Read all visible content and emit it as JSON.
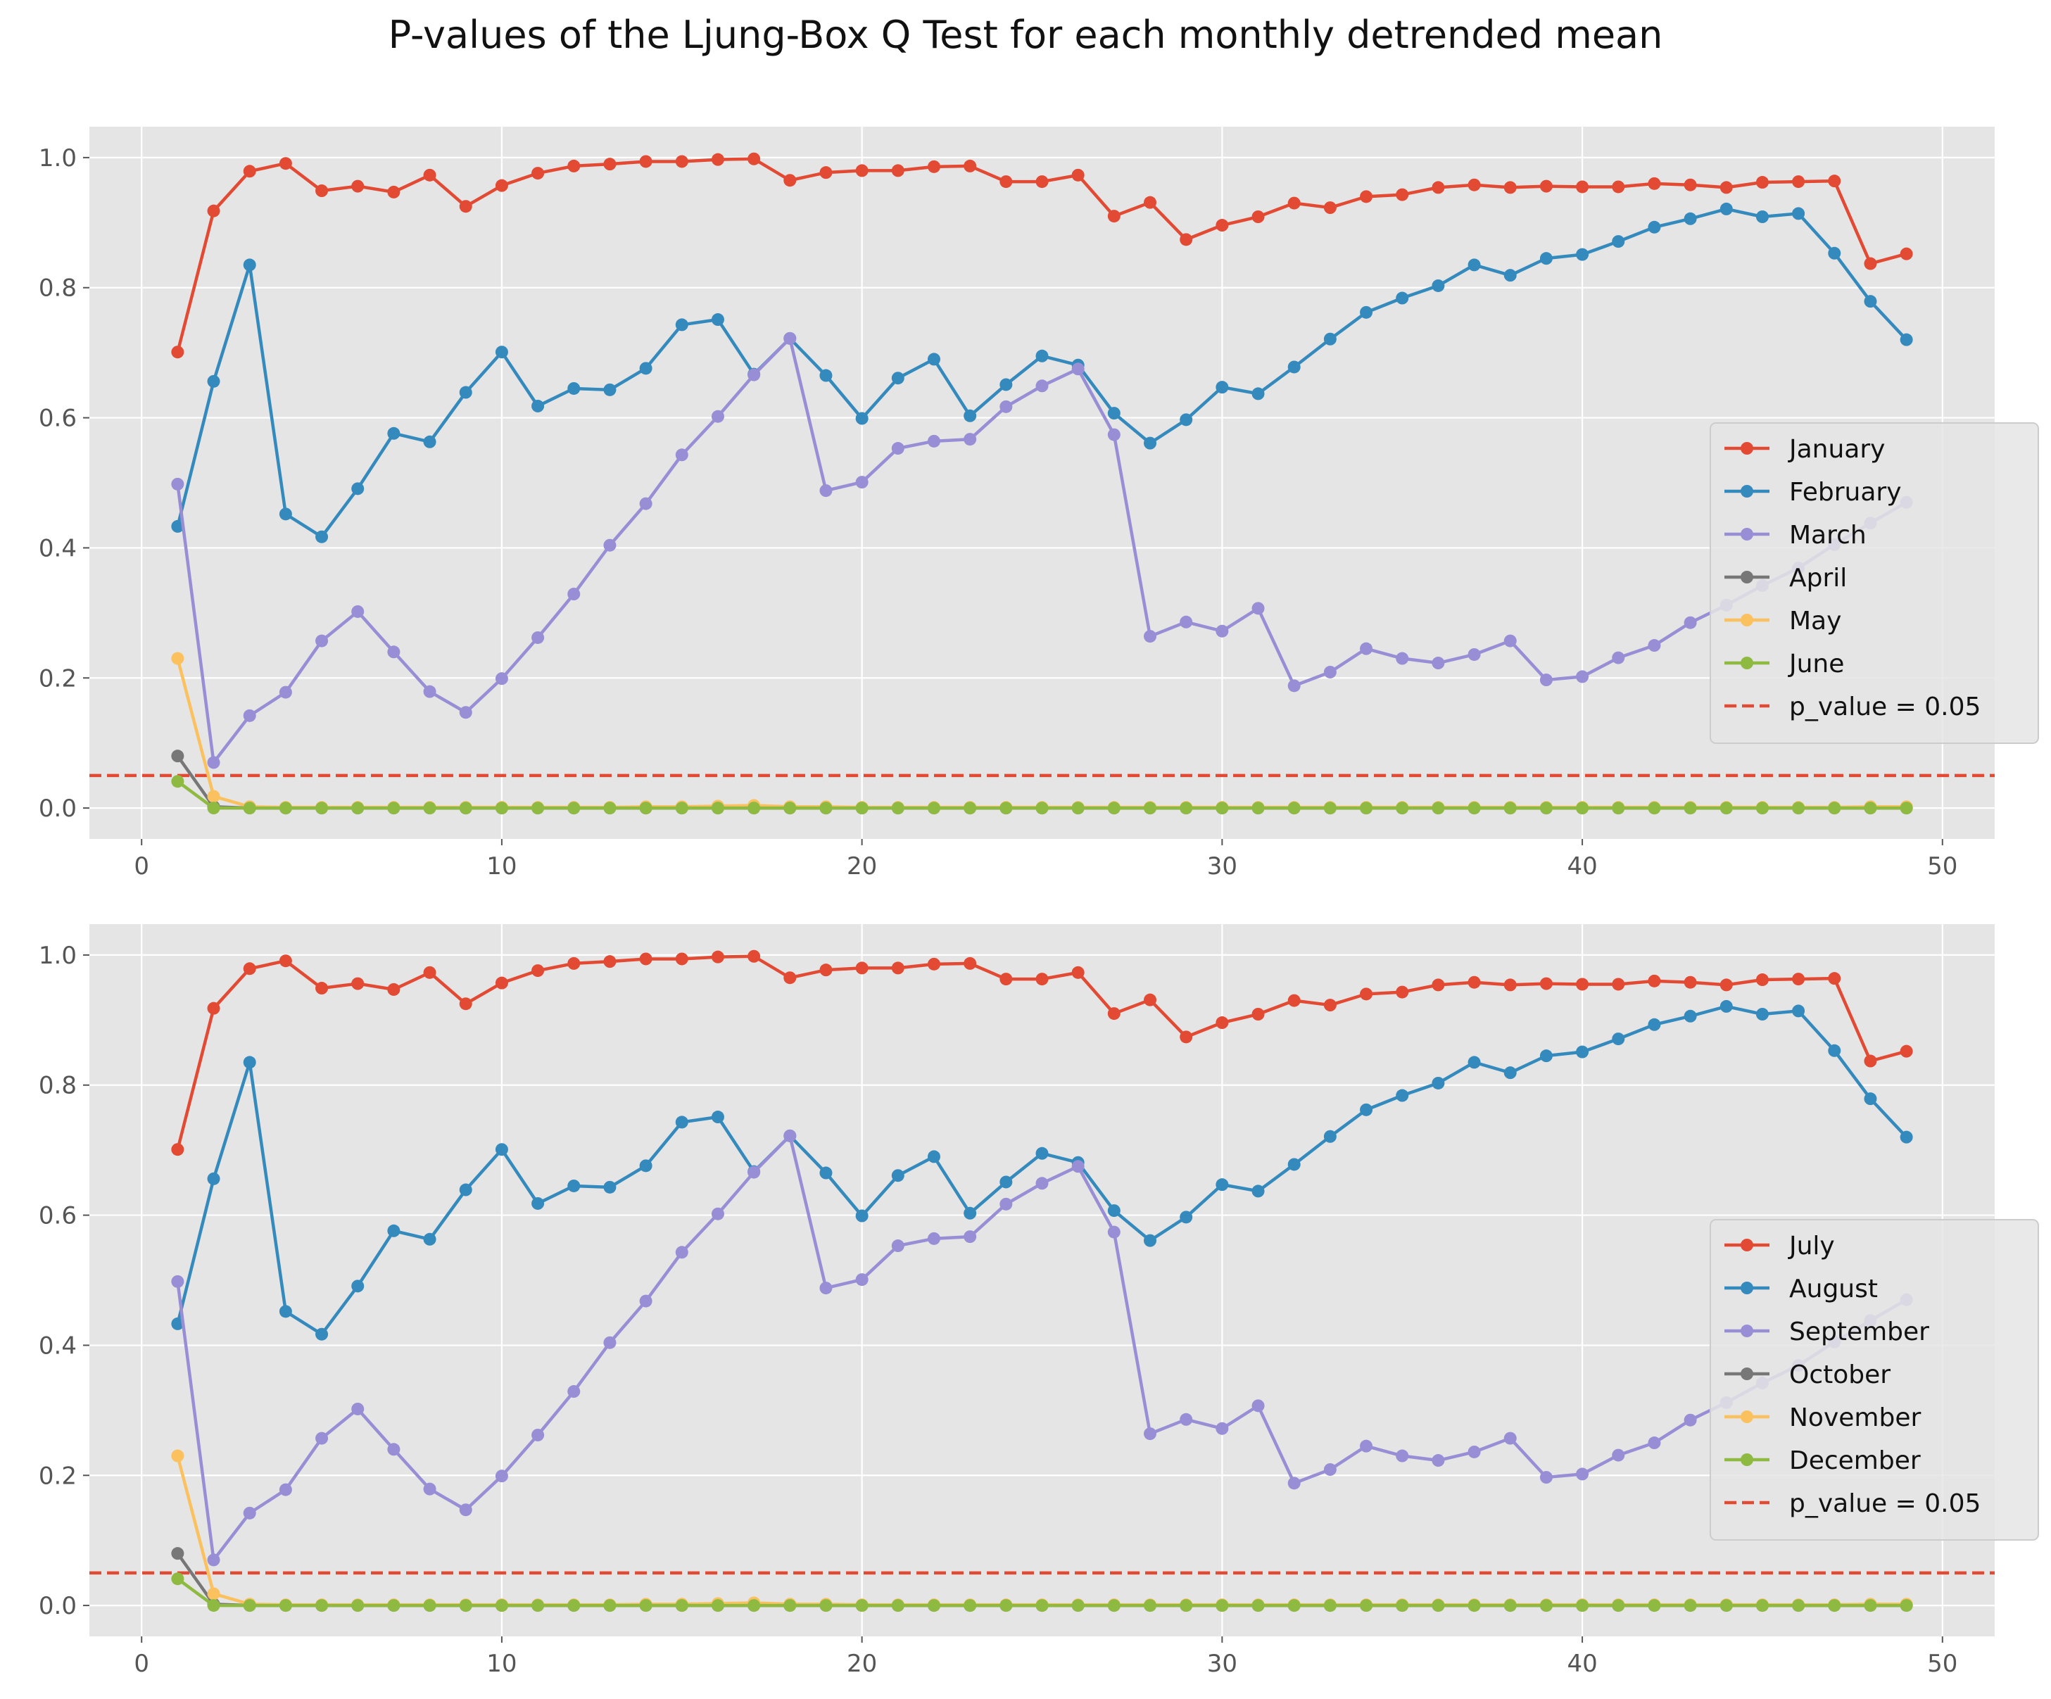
{
  "figure": {
    "title": "P-values of the Ljung-Box Q Test for each monthly detrended mean"
  },
  "style": {
    "axes_bg": "#E5E5E5",
    "grid": "#FFFFFF",
    "tick_color": "#555555",
    "threshold_color": "#E24A33"
  },
  "chart_data": [
    {
      "type": "line",
      "title": "",
      "xlabel": "",
      "ylabel": "",
      "xlim": [
        -1.45,
        51.45
      ],
      "ylim": [
        -0.0475,
        1.0475
      ],
      "x_ticks": [
        0,
        10,
        20,
        30,
        40,
        50
      ],
      "y_ticks": [
        0.0,
        0.2,
        0.4,
        0.6,
        0.8,
        1.0
      ],
      "x_tick_labels": [
        "0",
        "10",
        "20",
        "30",
        "40",
        "50"
      ],
      "y_tick_labels": [
        "0.0",
        "0.2",
        "0.4",
        "0.6",
        "0.8",
        "1.0"
      ],
      "grid": true,
      "legend_position": "center-right",
      "x": [
        1,
        2,
        3,
        4,
        5,
        6,
        7,
        8,
        9,
        10,
        11,
        12,
        13,
        14,
        15,
        16,
        17,
        18,
        19,
        20,
        21,
        22,
        23,
        24,
        25,
        26,
        27,
        28,
        29,
        30,
        31,
        32,
        33,
        34,
        35,
        36,
        37,
        38,
        39,
        40,
        41,
        42,
        43,
        44,
        45,
        46,
        47,
        48,
        49
      ],
      "series": [
        {
          "name": "January",
          "color": "#E24A33",
          "values": [
            0.701,
            0.918,
            0.979,
            0.991,
            0.949,
            0.956,
            0.947,
            0.973,
            0.925,
            0.957,
            0.976,
            0.987,
            0.99,
            0.994,
            0.994,
            0.997,
            0.998,
            0.965,
            0.977,
            0.98,
            0.98,
            0.986,
            0.987,
            0.963,
            0.963,
            0.973,
            0.91,
            0.931,
            0.874,
            0.896,
            0.909,
            0.93,
            0.923,
            0.94,
            0.943,
            0.954,
            0.958,
            0.954,
            0.956,
            0.955,
            0.955,
            0.96,
            0.958,
            0.954,
            0.962,
            0.963,
            0.964,
            0.837,
            0.852
          ]
        },
        {
          "name": "February",
          "color": "#348ABD",
          "values": [
            0.433,
            0.656,
            0.835,
            0.452,
            0.417,
            0.491,
            0.576,
            0.563,
            0.639,
            0.701,
            0.618,
            0.645,
            0.643,
            0.676,
            0.743,
            0.751,
            0.667,
            0.722,
            0.665,
            0.599,
            0.661,
            0.69,
            0.603,
            0.651,
            0.695,
            0.681,
            0.607,
            0.561,
            0.597,
            0.647,
            0.637,
            0.678,
            0.721,
            0.762,
            0.784,
            0.803,
            0.835,
            0.819,
            0.845,
            0.851,
            0.871,
            0.893,
            0.906,
            0.921,
            0.909,
            0.914,
            0.853,
            0.779,
            0.72
          ]
        },
        {
          "name": "March",
          "color": "#988ED5",
          "values": [
            0.498,
            0.07,
            0.142,
            0.178,
            0.257,
            0.302,
            0.24,
            0.179,
            0.147,
            0.199,
            0.262,
            0.329,
            0.404,
            0.468,
            0.543,
            0.602,
            0.666,
            0.722,
            0.488,
            0.501,
            0.553,
            0.564,
            0.567,
            0.617,
            0.649,
            0.675,
            0.574,
            0.264,
            0.286,
            0.272,
            0.307,
            0.188,
            0.209,
            0.245,
            0.23,
            0.223,
            0.236,
            0.257,
            0.197,
            0.202,
            0.231,
            0.25,
            0.285,
            0.312,
            0.342,
            0.369,
            0.405,
            0.438,
            0.47
          ]
        },
        {
          "name": "April",
          "color": "#777777",
          "values": [
            0.08,
            0.002,
            0.0,
            0.0,
            0.0,
            0.0,
            0.0,
            0.0,
            0.0,
            0.0,
            0.0,
            0.0,
            0.0,
            0.0,
            0.0,
            0.0,
            0.0,
            0.0,
            0.0,
            0.0,
            0.0,
            0.0,
            0.0,
            0.0,
            0.0,
            0.0,
            0.0,
            0.0,
            0.0,
            0.0,
            0.0,
            0.0,
            0.0,
            0.0,
            0.0,
            0.0,
            0.0,
            0.0,
            0.0,
            0.0,
            0.0,
            0.0,
            0.0,
            0.0,
            0.0,
            0.0,
            0.0,
            0.0,
            0.0
          ]
        },
        {
          "name": "May",
          "color": "#FBC15E",
          "values": [
            0.23,
            0.018,
            0.002,
            0.001,
            0.001,
            0.001,
            0.001,
            0.001,
            0.001,
            0.001,
            0.001,
            0.001,
            0.001,
            0.002,
            0.002,
            0.003,
            0.004,
            0.002,
            0.002,
            0.001,
            0.001,
            0.001,
            0.001,
            0.001,
            0.001,
            0.001,
            0.001,
            0.001,
            0.001,
            0.001,
            0.001,
            0.001,
            0.001,
            0.001,
            0.001,
            0.001,
            0.001,
            0.001,
            0.001,
            0.001,
            0.001,
            0.001,
            0.001,
            0.001,
            0.001,
            0.001,
            0.001,
            0.002,
            0.002
          ]
        },
        {
          "name": "June",
          "color": "#8EBA42",
          "values": [
            0.041,
            0.0,
            0.0,
            0.0,
            0.0,
            0.0,
            0.0,
            0.0,
            0.0,
            0.0,
            0.0,
            0.0,
            0.0,
            0.0,
            0.0,
            0.0,
            0.0,
            0.0,
            0.0,
            0.0,
            0.0,
            0.0,
            0.0,
            0.0,
            0.0,
            0.0,
            0.0,
            0.0,
            0.0,
            0.0,
            0.0,
            0.0,
            0.0,
            0.0,
            0.0,
            0.0,
            0.0,
            0.0,
            0.0,
            0.0,
            0.0,
            0.0,
            0.0,
            0.0,
            0.0,
            0.0,
            0.0,
            0.0,
            0.0
          ]
        }
      ],
      "threshold": {
        "label": "p_value = 0.05",
        "y": 0.05,
        "color": "#E24A33"
      }
    },
    {
      "type": "line",
      "title": "",
      "xlabel": "",
      "ylabel": "",
      "xlim": [
        -1.45,
        51.45
      ],
      "ylim": [
        -0.0475,
        1.0475
      ],
      "x_ticks": [
        0,
        10,
        20,
        30,
        40,
        50
      ],
      "y_ticks": [
        0.0,
        0.2,
        0.4,
        0.6,
        0.8,
        1.0
      ],
      "x_tick_labels": [
        "0",
        "10",
        "20",
        "30",
        "40",
        "50"
      ],
      "y_tick_labels": [
        "0.0",
        "0.2",
        "0.4",
        "0.6",
        "0.8",
        "1.0"
      ],
      "grid": true,
      "legend_position": "center-right",
      "x": [
        1,
        2,
        3,
        4,
        5,
        6,
        7,
        8,
        9,
        10,
        11,
        12,
        13,
        14,
        15,
        16,
        17,
        18,
        19,
        20,
        21,
        22,
        23,
        24,
        25,
        26,
        27,
        28,
        29,
        30,
        31,
        32,
        33,
        34,
        35,
        36,
        37,
        38,
        39,
        40,
        41,
        42,
        43,
        44,
        45,
        46,
        47,
        48,
        49
      ],
      "series": [
        {
          "name": "July",
          "color": "#E24A33",
          "values": [
            0.701,
            0.918,
            0.979,
            0.991,
            0.949,
            0.956,
            0.947,
            0.973,
            0.925,
            0.957,
            0.976,
            0.987,
            0.99,
            0.994,
            0.994,
            0.997,
            0.998,
            0.965,
            0.977,
            0.98,
            0.98,
            0.986,
            0.987,
            0.963,
            0.963,
            0.973,
            0.91,
            0.931,
            0.874,
            0.896,
            0.909,
            0.93,
            0.923,
            0.94,
            0.943,
            0.954,
            0.958,
            0.954,
            0.956,
            0.955,
            0.955,
            0.96,
            0.958,
            0.954,
            0.962,
            0.963,
            0.964,
            0.837,
            0.852
          ]
        },
        {
          "name": "August",
          "color": "#348ABD",
          "values": [
            0.433,
            0.656,
            0.835,
            0.452,
            0.417,
            0.491,
            0.576,
            0.563,
            0.639,
            0.701,
            0.618,
            0.645,
            0.643,
            0.676,
            0.743,
            0.751,
            0.667,
            0.722,
            0.665,
            0.599,
            0.661,
            0.69,
            0.603,
            0.651,
            0.695,
            0.681,
            0.607,
            0.561,
            0.597,
            0.647,
            0.637,
            0.678,
            0.721,
            0.762,
            0.784,
            0.803,
            0.835,
            0.819,
            0.845,
            0.851,
            0.871,
            0.893,
            0.906,
            0.921,
            0.909,
            0.914,
            0.853,
            0.779,
            0.72
          ]
        },
        {
          "name": "September",
          "color": "#988ED5",
          "values": [
            0.498,
            0.07,
            0.142,
            0.178,
            0.257,
            0.302,
            0.24,
            0.179,
            0.147,
            0.199,
            0.262,
            0.329,
            0.404,
            0.468,
            0.543,
            0.602,
            0.666,
            0.722,
            0.488,
            0.501,
            0.553,
            0.564,
            0.567,
            0.617,
            0.649,
            0.675,
            0.574,
            0.264,
            0.286,
            0.272,
            0.307,
            0.188,
            0.209,
            0.245,
            0.23,
            0.223,
            0.236,
            0.257,
            0.197,
            0.202,
            0.231,
            0.25,
            0.285,
            0.312,
            0.342,
            0.369,
            0.405,
            0.438,
            0.47
          ]
        },
        {
          "name": "October",
          "color": "#777777",
          "values": [
            0.08,
            0.002,
            0.0,
            0.0,
            0.0,
            0.0,
            0.0,
            0.0,
            0.0,
            0.0,
            0.0,
            0.0,
            0.0,
            0.0,
            0.0,
            0.0,
            0.0,
            0.0,
            0.0,
            0.0,
            0.0,
            0.0,
            0.0,
            0.0,
            0.0,
            0.0,
            0.0,
            0.0,
            0.0,
            0.0,
            0.0,
            0.0,
            0.0,
            0.0,
            0.0,
            0.0,
            0.0,
            0.0,
            0.0,
            0.0,
            0.0,
            0.0,
            0.0,
            0.0,
            0.0,
            0.0,
            0.0,
            0.0,
            0.0
          ]
        },
        {
          "name": "November",
          "color": "#FBC15E",
          "values": [
            0.23,
            0.018,
            0.002,
            0.001,
            0.001,
            0.001,
            0.001,
            0.001,
            0.001,
            0.001,
            0.001,
            0.001,
            0.001,
            0.002,
            0.002,
            0.003,
            0.004,
            0.002,
            0.002,
            0.001,
            0.001,
            0.001,
            0.001,
            0.001,
            0.001,
            0.001,
            0.001,
            0.001,
            0.001,
            0.001,
            0.001,
            0.001,
            0.001,
            0.001,
            0.001,
            0.001,
            0.001,
            0.001,
            0.001,
            0.001,
            0.001,
            0.001,
            0.001,
            0.001,
            0.001,
            0.001,
            0.001,
            0.002,
            0.002
          ]
        },
        {
          "name": "December",
          "color": "#8EBA42",
          "values": [
            0.041,
            0.0,
            0.0,
            0.0,
            0.0,
            0.0,
            0.0,
            0.0,
            0.0,
            0.0,
            0.0,
            0.0,
            0.0,
            0.0,
            0.0,
            0.0,
            0.0,
            0.0,
            0.0,
            0.0,
            0.0,
            0.0,
            0.0,
            0.0,
            0.0,
            0.0,
            0.0,
            0.0,
            0.0,
            0.0,
            0.0,
            0.0,
            0.0,
            0.0,
            0.0,
            0.0,
            0.0,
            0.0,
            0.0,
            0.0,
            0.0,
            0.0,
            0.0,
            0.0,
            0.0,
            0.0,
            0.0,
            0.0,
            0.0
          ]
        }
      ],
      "threshold": {
        "label": "p_value = 0.05",
        "y": 0.05,
        "color": "#E24A33"
      }
    }
  ]
}
